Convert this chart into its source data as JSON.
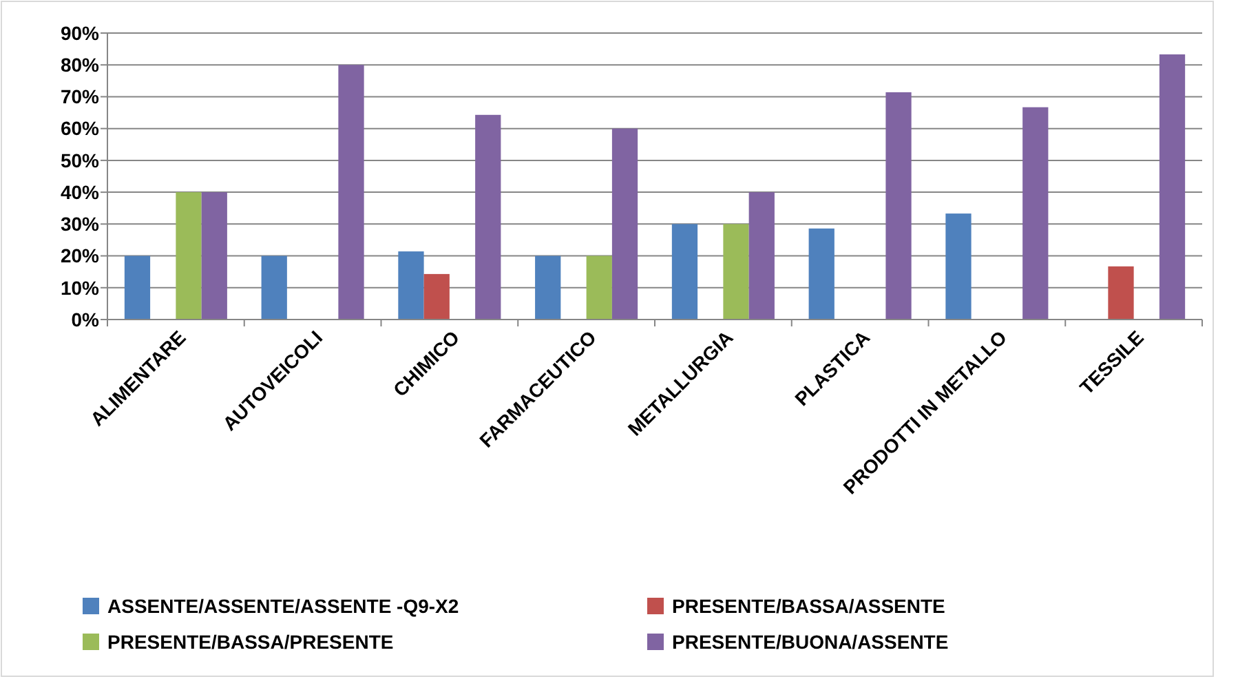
{
  "chart_data": {
    "type": "bar",
    "categories": [
      "ALIMENTARE",
      "AUTOVEICOLI",
      "CHIMICO",
      "FARMACEUTICO",
      "METALLURGIA",
      "PLASTICA",
      "PRODOTTI IN METALLO",
      "TESSILE"
    ],
    "series": [
      {
        "name": "ASSENTE/ASSENTE/ASSENTE -Q9-X2",
        "color": "#4f81bd",
        "values": [
          20,
          20,
          21.4,
          20,
          30,
          28.6,
          33.3,
          0
        ]
      },
      {
        "name": "PRESENTE/BASSA/ASSENTE",
        "color": "#c0504d",
        "values": [
          0,
          0,
          14.3,
          0,
          0,
          0,
          0,
          16.7
        ]
      },
      {
        "name": "PRESENTE/BASSA/PRESENTE",
        "color": "#9bbb59",
        "values": [
          40,
          0,
          0,
          20,
          30,
          0,
          0,
          0
        ]
      },
      {
        "name": "PRESENTE/BUONA/ASSENTE",
        "color": "#8064a2",
        "values": [
          40,
          80,
          64.3,
          60,
          40,
          71.4,
          66.7,
          83.3
        ]
      }
    ],
    "ylim": [
      0,
      90
    ],
    "yticks": [
      {
        "value": 0,
        "label": "0%"
      },
      {
        "value": 10,
        "label": "10%"
      },
      {
        "value": 20,
        "label": "20%"
      },
      {
        "value": 30,
        "label": "30%"
      },
      {
        "value": 40,
        "label": "40%"
      },
      {
        "value": 50,
        "label": "50%"
      },
      {
        "value": 60,
        "label": "60%"
      },
      {
        "value": 70,
        "label": "70%"
      },
      {
        "value": 80,
        "label": "80%"
      },
      {
        "value": 90,
        "label": "90%"
      }
    ],
    "grid": "y",
    "legend": "bottom"
  }
}
